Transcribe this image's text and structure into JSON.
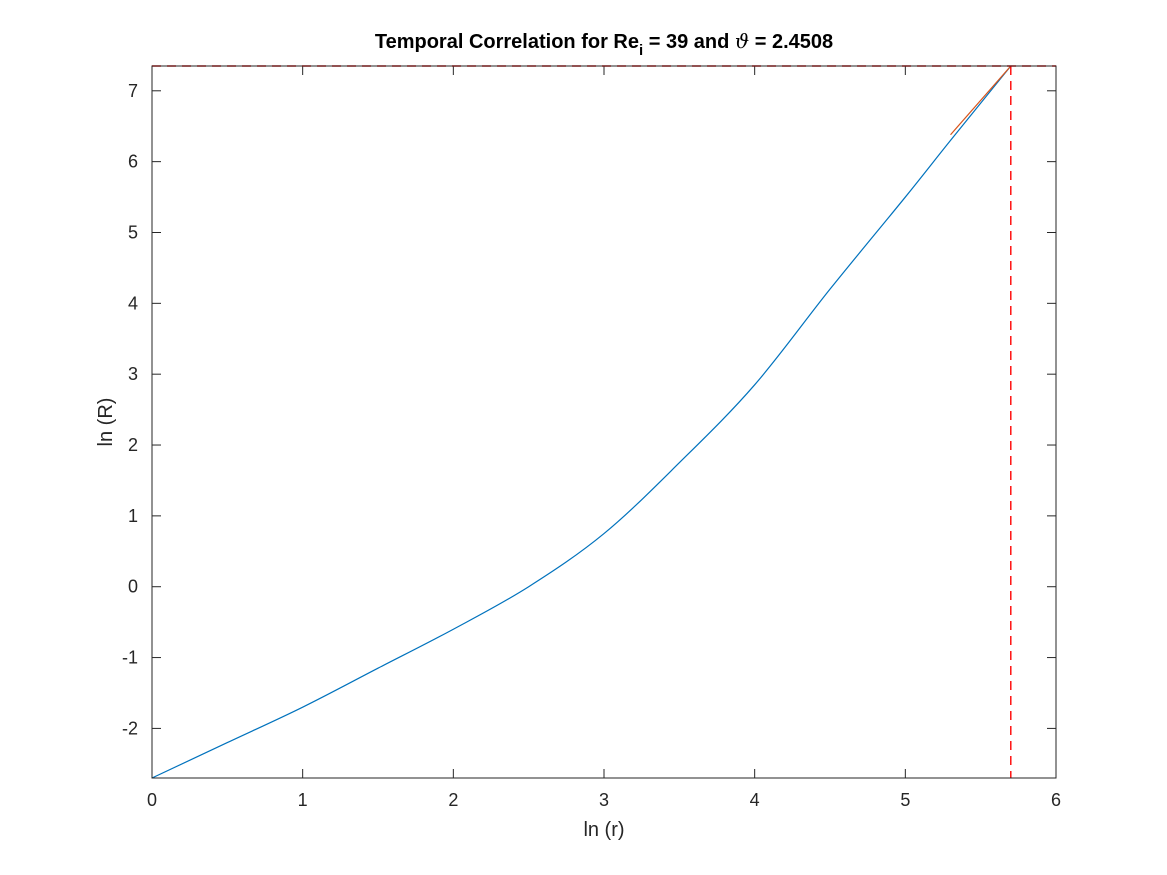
{
  "chart_data": {
    "type": "line",
    "title": {
      "prefix": "Temporal Correlation for Re",
      "subscript": "i",
      "middle": " = 39 and ",
      "symbol": "ϑ",
      "suffix": " = 2.4508"
    },
    "xlabel": "ln (r)",
    "ylabel": "ln (R)",
    "xlim": [
      0,
      6
    ],
    "ylim": [
      -2.7,
      7.35
    ],
    "xticks": [
      0,
      1,
      2,
      3,
      4,
      5,
      6
    ],
    "yticks": [
      -2,
      -1,
      0,
      1,
      2,
      3,
      4,
      5,
      6,
      7
    ],
    "grid": false,
    "series": [
      {
        "color": "#0072BD",
        "style": "solid",
        "x": [
          0,
          0.5,
          1.0,
          1.5,
          2.0,
          2.5,
          3.0,
          3.5,
          4.0,
          4.5,
          5.0,
          5.3,
          5.7
        ],
        "y": [
          -2.7,
          -2.2,
          -1.7,
          -1.15,
          -0.6,
          0.0,
          0.75,
          1.75,
          2.85,
          4.2,
          5.5,
          6.3,
          7.35
        ]
      },
      {
        "color": "#D95319",
        "style": "solid",
        "x": [
          5.3,
          5.7
        ],
        "y": [
          6.38,
          7.35
        ]
      }
    ],
    "reference_lines": [
      {
        "orientation": "vertical",
        "value": 5.7,
        "color": "#FF0000",
        "style": "dashed"
      },
      {
        "orientation": "horizontal",
        "value": 7.35,
        "color": "#FF0000",
        "style": "dashed"
      }
    ]
  }
}
